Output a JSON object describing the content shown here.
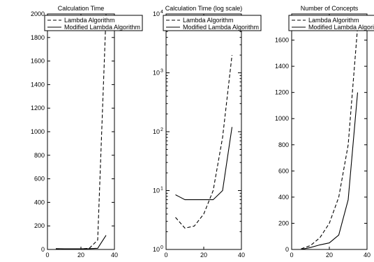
{
  "colors": {
    "background": "#ffffff",
    "ink": "#000000"
  },
  "chart_data": [
    {
      "type": "line",
      "title": "Calculation Time",
      "xlabel": "",
      "ylabel": "",
      "xlim": [
        0,
        40
      ],
      "ylim": [
        0,
        2000
      ],
      "yscale": "linear",
      "xticks": [
        "0",
        "20",
        "40"
      ],
      "yticks": [
        "0",
        "200",
        "400",
        "600",
        "800",
        "1000",
        "1200",
        "1400",
        "1600",
        "1800",
        "2000"
      ],
      "grid": false,
      "legend_position": "top-left",
      "series": [
        {
          "name": "Lambda Algorithm",
          "style": "dashed",
          "x": [
            5,
            10,
            15,
            20,
            25,
            30,
            35
          ],
          "y": [
            3,
            2,
            2,
            4,
            10,
            80,
            2000
          ]
        },
        {
          "name": "Modified Lambda Algorithm",
          "style": "solid",
          "x": [
            5,
            10,
            15,
            20,
            25,
            30,
            35
          ],
          "y": [
            7,
            6,
            6,
            6,
            7,
            10,
            120
          ]
        }
      ]
    },
    {
      "type": "line",
      "title": "Calculation Time (log scale)",
      "xlabel": "",
      "ylabel": "",
      "xlim": [
        0,
        40
      ],
      "ylim": [
        1,
        10000
      ],
      "yscale": "log",
      "xticks": [
        "0",
        "20",
        "40"
      ],
      "ytick_values": [
        1,
        10,
        100,
        1000,
        10000
      ],
      "yticks": [
        {
          "base": "10",
          "exp": "0"
        },
        {
          "base": "10",
          "exp": "1"
        },
        {
          "base": "10",
          "exp": "2"
        },
        {
          "base": "10",
          "exp": "3"
        },
        {
          "base": "10",
          "exp": "4"
        }
      ],
      "grid": false,
      "legend_position": "top-left",
      "series": [
        {
          "name": "Lambda Algorithm",
          "style": "dashed",
          "x": [
            5,
            10,
            15,
            20,
            25,
            30,
            35
          ],
          "y": [
            3.5,
            2.3,
            2.5,
            4,
            10,
            80,
            2000
          ]
        },
        {
          "name": "Modified Lambda Algorithm",
          "style": "solid",
          "x": [
            5,
            10,
            15,
            20,
            25,
            30,
            35
          ],
          "y": [
            8.5,
            7,
            7,
            7,
            7,
            10,
            120
          ]
        }
      ]
    },
    {
      "type": "line",
      "title": "Number of Concepts",
      "xlabel": "",
      "ylabel": "",
      "xlim": [
        0,
        40
      ],
      "ylim": [
        0,
        1800
      ],
      "yscale": "linear",
      "xticks": [
        "0",
        "20",
        "40"
      ],
      "yticks": [
        "0",
        "200",
        "400",
        "600",
        "800",
        "1000",
        "1200",
        "1400",
        "1600"
      ],
      "grid": false,
      "legend_position": "top-left",
      "series": [
        {
          "name": "Lambda Algorithm",
          "style": "dashed",
          "x": [
            5,
            10,
            15,
            20,
            25,
            30,
            35
          ],
          "y": [
            5,
            30,
            90,
            200,
            400,
            800,
            1700
          ]
        },
        {
          "name": "Modified Lambda Algorithm",
          "style": "solid",
          "x": [
            5,
            10,
            15,
            20,
            25,
            30,
            35
          ],
          "y": [
            0,
            15,
            35,
            50,
            110,
            380,
            1200
          ]
        }
      ]
    }
  ]
}
